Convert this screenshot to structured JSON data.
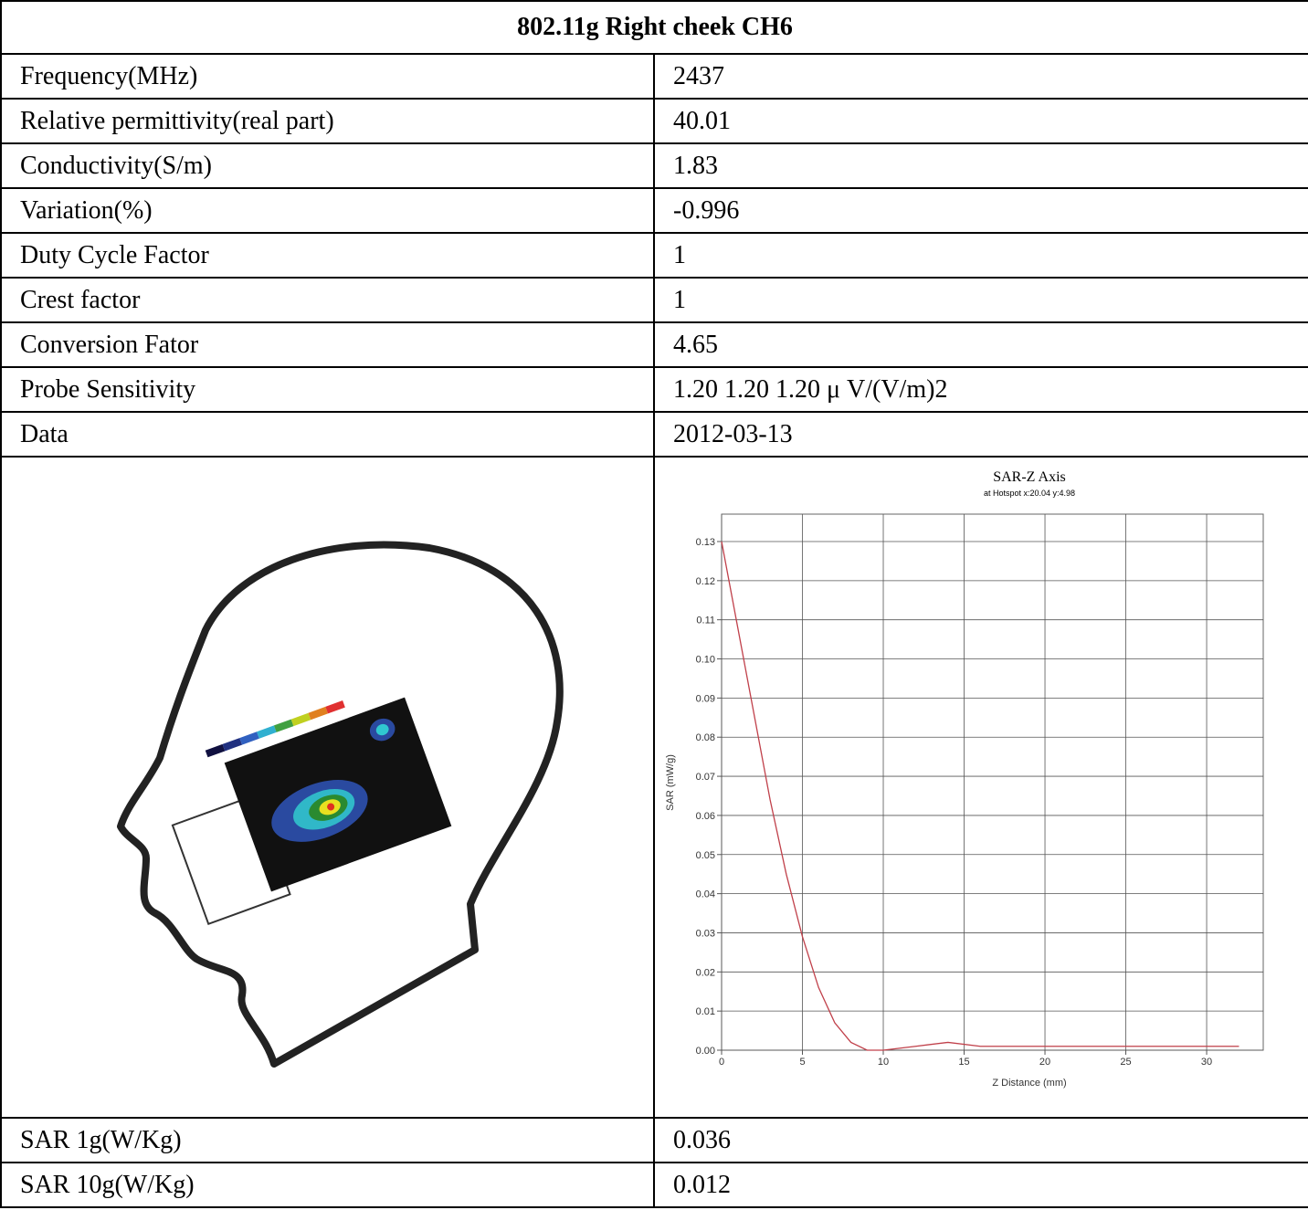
{
  "table": {
    "title": "802.11g Right cheek CH6",
    "rows": [
      [
        "Frequency(MHz)",
        "2437"
      ],
      [
        "Relative permittivity(real part)",
        "40.01"
      ],
      [
        "Conductivity(S/m)",
        "1.83"
      ],
      [
        "Variation(%)",
        "-0.996"
      ],
      [
        "Duty Cycle Factor",
        "1"
      ],
      [
        "Crest factor",
        "1"
      ],
      [
        "Conversion Fator",
        "4.65"
      ],
      [
        "Probe Sensitivity",
        "1.20 1.20 1.20  μ V/(V/m)2"
      ],
      [
        "Data",
        "2012-03-13"
      ]
    ],
    "footer_rows": [
      [
        "SAR 1g(W/Kg)",
        "0.036"
      ],
      [
        "SAR 10g(W/Kg)",
        "0.012"
      ]
    ]
  },
  "chart_data": {
    "type": "line",
    "title": "SAR-Z Axis",
    "subtitle": "at Hotspot x:20.04 y:4.98",
    "x_label": "Z Distance (mm)",
    "y_label": "SAR (mW/g)",
    "x": [
      0,
      1,
      2,
      3,
      4,
      5,
      6,
      7,
      8,
      9,
      10,
      12,
      14,
      16,
      20,
      25,
      32
    ],
    "values": [
      0.13,
      0.108,
      0.086,
      0.064,
      0.045,
      0.029,
      0.016,
      0.007,
      0.002,
      0.0,
      0.0,
      0.001,
      0.002,
      0.001,
      0.001,
      0.001,
      0.001
    ],
    "color": "#c0404a",
    "xlim": [
      0,
      33.5
    ],
    "ylim": [
      0,
      0.137
    ],
    "xticks": [
      0,
      5,
      10,
      15,
      20,
      25,
      30
    ],
    "yticks": [
      {
        "value": 0,
        "label": "0.00"
      },
      0.01,
      0.02,
      0.03,
      0.04,
      0.05,
      0.06,
      0.07,
      0.08,
      0.09,
      {
        "value": 0.1,
        "label": "0.10"
      },
      0.11,
      0.12,
      0.13
    ],
    "grid": true
  }
}
